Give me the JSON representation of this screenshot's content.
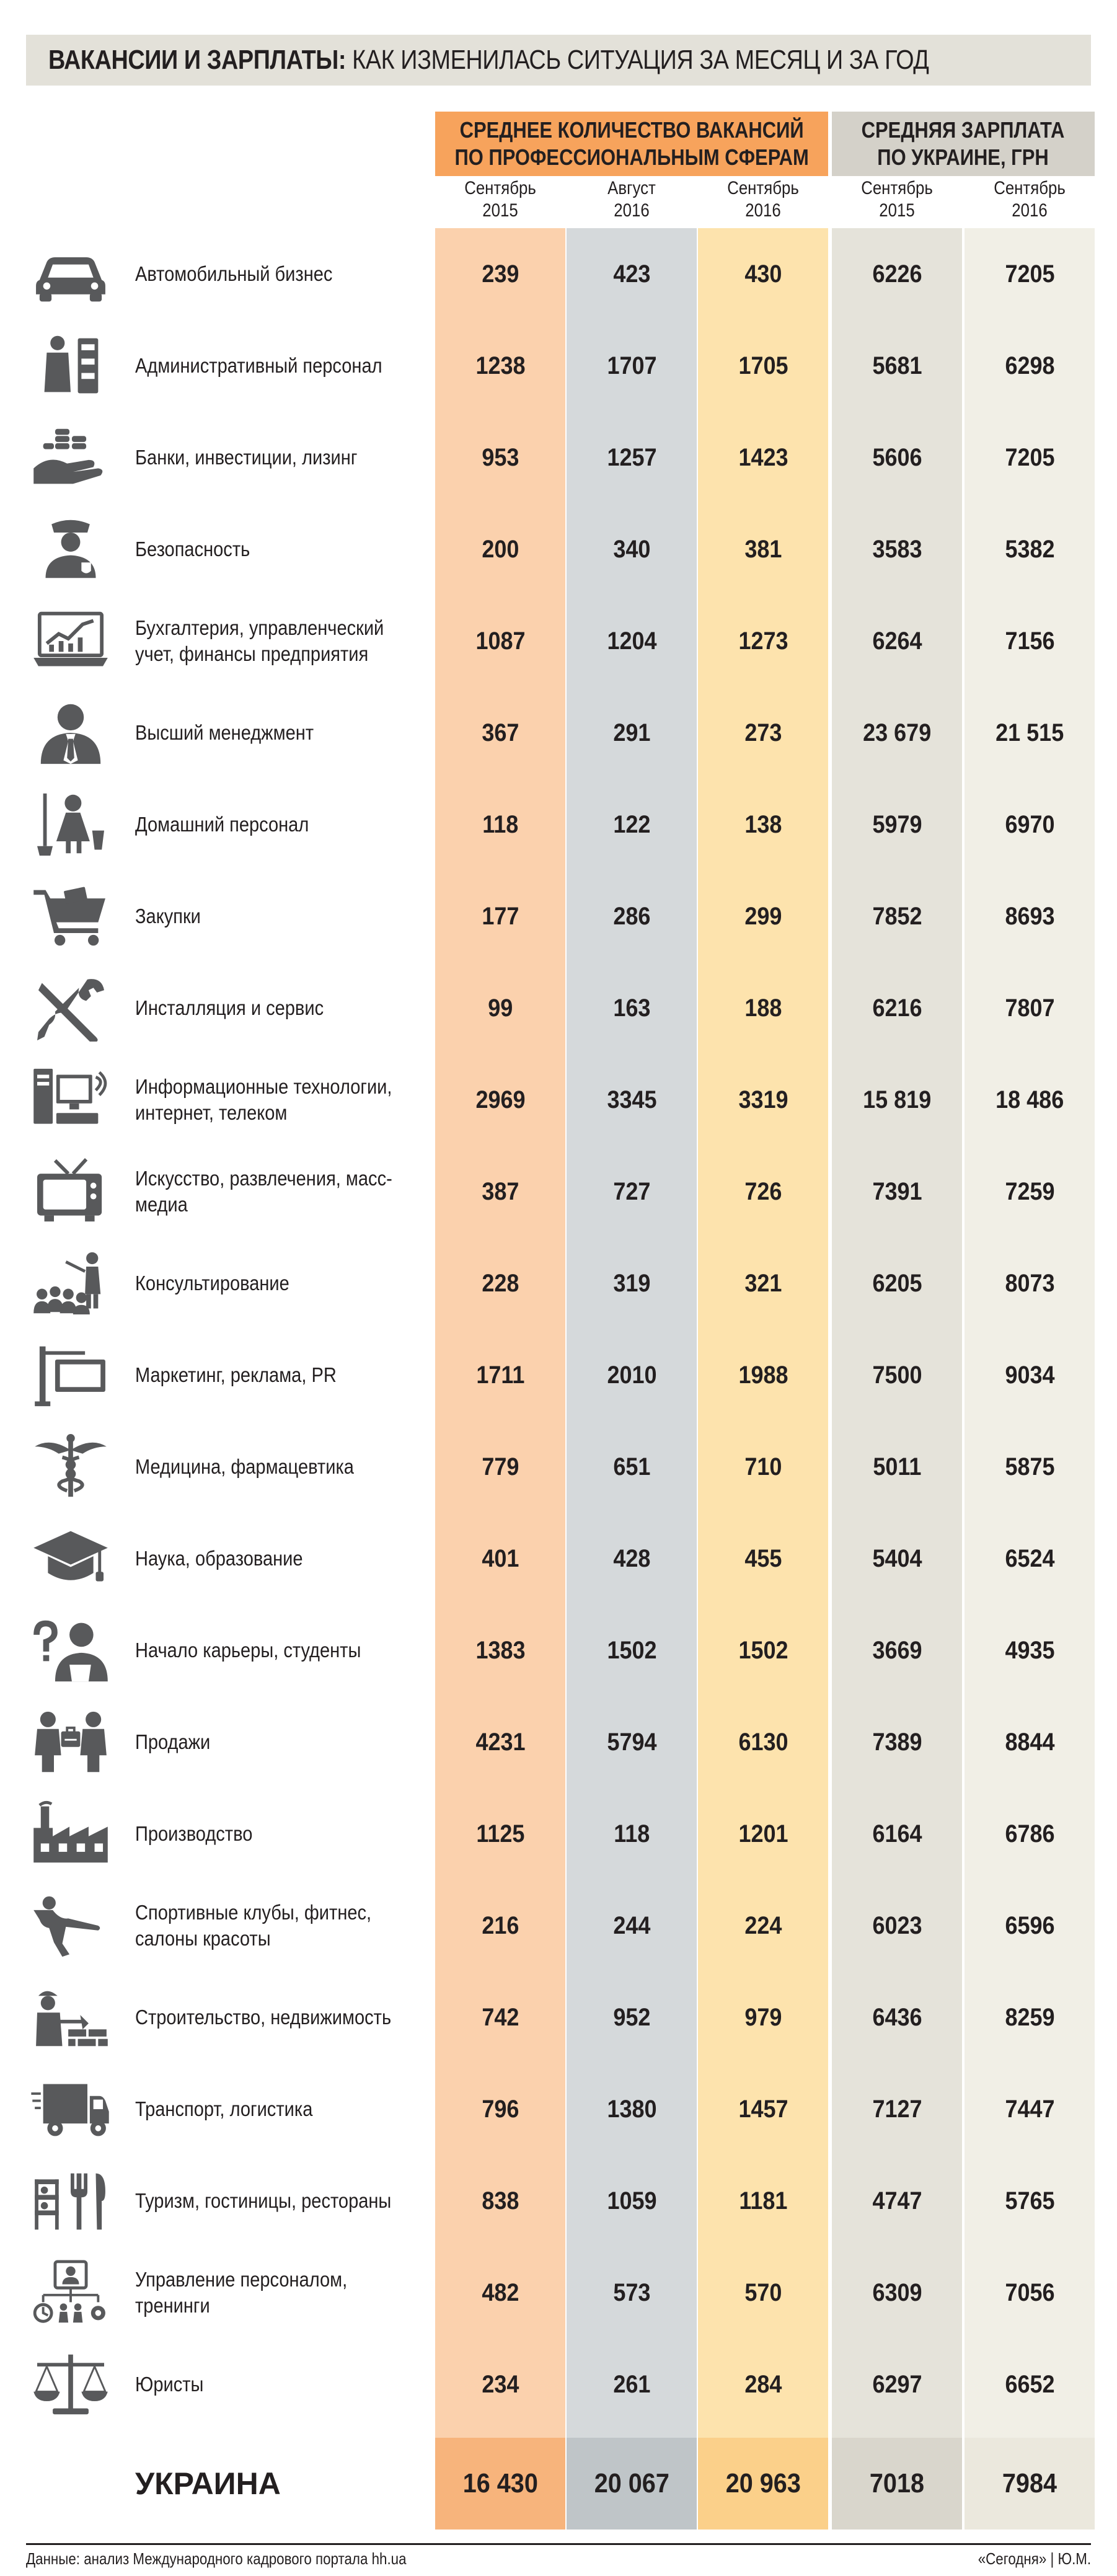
{
  "title": {
    "bold": "ВАКАНСИИ И ЗАРПЛАТЫ:",
    "rest": " КАК ИЗМЕНИЛАСЬ СИТУАЦИЯ ЗА МЕСЯЦ И ЗА ГОД"
  },
  "group_headers": {
    "vacancies": [
      "СРЕДНЕЕ КОЛИЧЕСТВО ВАКАНСИЙ",
      "ПО ПРОФЕССИОНАЛЬНЫМ СФЕРАМ"
    ],
    "salary": [
      "СРЕДНЯЯ ЗАРПЛАТА",
      "ПО УКРАИНЕ, ГРН"
    ]
  },
  "column_headers": [
    [
      "Сентябрь",
      "2015"
    ],
    [
      "Август",
      "2016"
    ],
    [
      "Сентябрь",
      "2016"
    ],
    [
      "Сентябрь",
      "2015"
    ],
    [
      "Сентябрь",
      "2016"
    ]
  ],
  "colors": {
    "vac_sep2015": "#fbd1ad",
    "vac_aug2016": "#d5d9db",
    "vac_sep2016": "#fde3ad",
    "sal_sep2015": "#e5e3da",
    "sal_sep2016": "#f1efe6",
    "row_alt_tint": "#ffffff",
    "icon": "#58595b"
  },
  "chart_data": {
    "type": "table",
    "title": "ВАКАНСИИ И ЗАРПЛАТЫ: КАК ИЗМЕНИЛАСЬ СИТУАЦИЯ ЗА МЕСЯЦ И ЗА ГОД",
    "columns": [
      "Вакансии, Сентябрь 2015",
      "Вакансии, Август 2016",
      "Вакансии, Сентябрь 2016",
      "Зарплата, Сентябрь 2015",
      "Зарплата, Сентябрь 2016"
    ],
    "rows": [
      {
        "icon": "car-icon",
        "label": "Автомобильный бизнес",
        "values": [
          "239",
          "423",
          "430",
          "6226",
          "7205"
        ]
      },
      {
        "icon": "office-worker-icon",
        "label": "Административный персонал",
        "values": [
          "1238",
          "1707",
          "1705",
          "5681",
          "6298"
        ]
      },
      {
        "icon": "coins-hand-icon",
        "label": "Банки, инвестиции, лизинг",
        "values": [
          "953",
          "1257",
          "1423",
          "5606",
          "7205"
        ]
      },
      {
        "icon": "security-guard-icon",
        "label": "Безопасность",
        "values": [
          "200",
          "340",
          "381",
          "3583",
          "5382"
        ]
      },
      {
        "icon": "chart-laptop-icon",
        "label": "Бухгалтерия, управленческий учет, финансы предприятия",
        "values": [
          "1087",
          "1204",
          "1273",
          "6264",
          "7156"
        ]
      },
      {
        "icon": "manager-icon",
        "label": "Высший менеджмент",
        "values": [
          "367",
          "291",
          "273",
          "23 679",
          "21 515"
        ]
      },
      {
        "icon": "housekeeper-icon",
        "label": "Домашний персонал",
        "values": [
          "118",
          "122",
          "138",
          "5979",
          "6970"
        ]
      },
      {
        "icon": "shopping-cart-icon",
        "label": "Закупки",
        "values": [
          "177",
          "286",
          "299",
          "7852",
          "8693"
        ]
      },
      {
        "icon": "tools-icon",
        "label": "Инсталляция и сервис",
        "values": [
          "99",
          "163",
          "188",
          "6216",
          "7807"
        ]
      },
      {
        "icon": "computer-icon",
        "label": "Информационные технологии, интернет, телеком",
        "values": [
          "2969",
          "3345",
          "3319",
          "15 819",
          "18 486"
        ]
      },
      {
        "icon": "tv-icon",
        "label": "Искусство, развлечения, масс-медиа",
        "values": [
          "387",
          "727",
          "726",
          "7391",
          "7259"
        ]
      },
      {
        "icon": "presenter-audience-icon",
        "label": "Консультирование",
        "values": [
          "228",
          "319",
          "321",
          "6205",
          "8073"
        ]
      },
      {
        "icon": "signboard-icon",
        "label": "Маркетинг, реклама, PR",
        "values": [
          "1711",
          "2010",
          "1988",
          "7500",
          "9034"
        ]
      },
      {
        "icon": "caduceus-icon",
        "label": "Медицина, фармацевтика",
        "values": [
          "779",
          "651",
          "710",
          "5011",
          "5875"
        ]
      },
      {
        "icon": "graduation-cap-icon",
        "label": "Наука, образование",
        "values": [
          "401",
          "428",
          "455",
          "5404",
          "6524"
        ]
      },
      {
        "icon": "student-question-icon",
        "label": "Начало карьеры, студенты",
        "values": [
          "1383",
          "1502",
          "1502",
          "3669",
          "4935"
        ]
      },
      {
        "icon": "sales-people-icon",
        "label": "Продажи",
        "values": [
          "4231",
          "5794",
          "6130",
          "7389",
          "8844"
        ]
      },
      {
        "icon": "factory-icon",
        "label": "Производство",
        "values": [
          "1125",
          "118",
          "1201",
          "6164",
          "6786"
        ]
      },
      {
        "icon": "fitness-icon",
        "label": "Спортивные клубы, фитнес, салоны красоты",
        "values": [
          "216",
          "244",
          "224",
          "6023",
          "6596"
        ]
      },
      {
        "icon": "builder-bricks-icon",
        "label": "Строительство, недвижимость",
        "values": [
          "742",
          "952",
          "979",
          "6436",
          "8259"
        ]
      },
      {
        "icon": "truck-icon",
        "label": "Транспорт, логистика",
        "values": [
          "796",
          "1380",
          "1457",
          "7127",
          "7447"
        ]
      },
      {
        "icon": "hotel-restaurant-icon",
        "label": "Туризм, гостиницы, рестораны",
        "values": [
          "838",
          "1059",
          "1181",
          "4747",
          "5765"
        ]
      },
      {
        "icon": "hr-management-icon",
        "label": "Управление персоналом, тренинги",
        "values": [
          "482",
          "573",
          "570",
          "6309",
          "7056"
        ]
      },
      {
        "icon": "scales-icon",
        "label": "Юристы",
        "values": [
          "234",
          "261",
          "284",
          "6297",
          "6652"
        ]
      }
    ],
    "total": {
      "label": "УКРАИНА",
      "values": [
        "16 430",
        "20 067",
        "20 963",
        "7018",
        "7984"
      ]
    }
  },
  "footer": {
    "source": "Данные: анализ Международного кадрового портала hh.ua",
    "credit": "«Сегодня» | Ю.М."
  }
}
